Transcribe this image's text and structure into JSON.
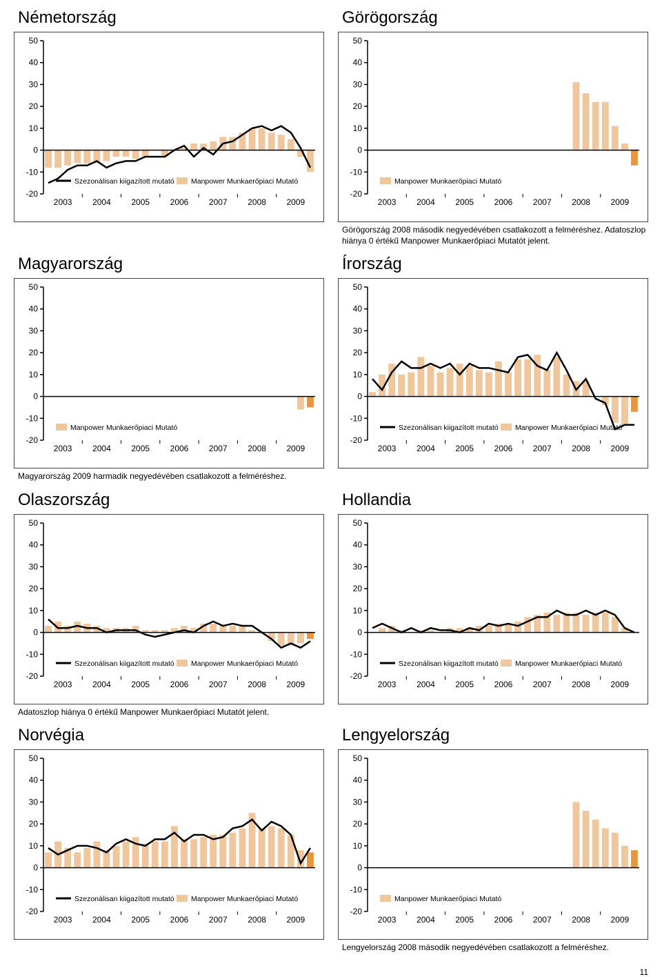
{
  "colors": {
    "bar": "#f0c69d",
    "hi": "#e9963e",
    "ln": "#000",
    "ax": "#000",
    "bg": "#fff"
  },
  "ylim": [
    -20,
    50
  ],
  "yticks": [
    -20,
    -10,
    0,
    10,
    20,
    30,
    40,
    50
  ],
  "years": [
    2003,
    2004,
    2005,
    2006,
    2007,
    2008,
    2009
  ],
  "bars_per_year": 4,
  "legend": {
    "sz": "Szezonálisan kiigazított mutató",
    "mp": "Manpower Munkaerőpiaci Mutató"
  },
  "pagenum": "11",
  "charts": [
    {
      "title": "Németország",
      "note": "",
      "bars": [
        -8,
        -8,
        -7,
        -6,
        -6,
        -6,
        -5,
        -3,
        -3,
        -4,
        -3,
        0,
        -3,
        0,
        1,
        3,
        3,
        4,
        6,
        6,
        8,
        10,
        10,
        8,
        7,
        5,
        -3,
        -10
      ],
      "line": [
        -15,
        -13,
        -9,
        -7,
        -7,
        -5,
        -8,
        -6,
        -5,
        -5,
        -3,
        -3,
        -3,
        0,
        2,
        -3,
        1,
        -2,
        3,
        4,
        7,
        10,
        11,
        9,
        11,
        8,
        1,
        -8
      ],
      "legend": [
        "sz",
        "mp"
      ]
    },
    {
      "title": "Görögország",
      "note": "Görögország 2008 második negyedévében csatlakozott a felméréshez. Adatoszlop hiánya 0 értékű Manpower Munkaerőpiaci Mutatót jelent.",
      "bars": [
        0,
        0,
        0,
        0,
        0,
        0,
        0,
        0,
        0,
        0,
        0,
        0,
        0,
        0,
        0,
        0,
        0,
        0,
        0,
        0,
        0,
        31,
        26,
        22,
        22,
        11,
        3,
        -7
      ],
      "line": null,
      "hi": [
        27
      ],
      "legend": [
        "mp"
      ]
    },
    {
      "title": "Magyarország",
      "note": "Magyarország 2009 harmadik negyedévében csatlakozott a felméréshez.",
      "bars": [
        0,
        0,
        0,
        0,
        0,
        0,
        0,
        0,
        0,
        0,
        0,
        0,
        0,
        0,
        0,
        0,
        0,
        0,
        0,
        0,
        0,
        0,
        0,
        0,
        0,
        0,
        -6,
        -5
      ],
      "line": null,
      "hi": [
        27
      ],
      "legend": [
        "mp"
      ]
    },
    {
      "title": "Írország",
      "note": "",
      "bars": [
        2,
        10,
        15,
        10,
        11,
        18,
        14,
        11,
        13,
        15,
        14,
        12,
        11,
        16,
        11,
        17,
        17,
        19,
        12,
        18,
        10,
        7,
        7,
        0,
        -4,
        -12,
        -13,
        -7
      ],
      "line": [
        8,
        3,
        11,
        16,
        13,
        13,
        15,
        13,
        15,
        10,
        15,
        13,
        13,
        12,
        11,
        18,
        19,
        14,
        12,
        20,
        12,
        3,
        8,
        -1,
        -3,
        -15,
        -13,
        -13
      ],
      "hi": [
        27
      ],
      "legend": [
        "sz",
        "mp"
      ]
    },
    {
      "title": "Olaszország",
      "note": "Adatoszlop hiánya 0 értékű Manpower Munkaerőpiaci Mutatót jelent.",
      "bars": [
        3,
        5,
        3,
        5,
        4,
        3,
        2,
        2,
        2,
        3,
        1,
        1,
        1,
        2,
        3,
        2,
        4,
        4,
        3,
        3,
        3,
        1,
        0,
        -4,
        -6,
        -6,
        -5,
        -3
      ],
      "line": [
        6,
        2,
        2,
        3,
        2,
        2,
        0,
        1,
        1,
        1,
        -1,
        -2,
        -1,
        0,
        1,
        0,
        3,
        5,
        3,
        4,
        3,
        3,
        0,
        -3,
        -7,
        -5,
        -7,
        -4
      ],
      "hi": [
        27
      ],
      "legend": [
        "sz",
        "mp"
      ]
    },
    {
      "title": "Hollandia",
      "note": "",
      "bars": [
        0,
        2,
        3,
        1,
        0,
        1,
        1,
        0,
        2,
        2,
        2,
        3,
        3,
        4,
        4,
        5,
        7,
        8,
        9,
        8,
        9,
        9,
        8,
        9,
        9,
        7,
        2,
        0
      ],
      "line": [
        2,
        4,
        2,
        0,
        2,
        0,
        2,
        1,
        1,
        0,
        2,
        1,
        4,
        3,
        4,
        3,
        5,
        7,
        7,
        10,
        8,
        8,
        10,
        8,
        10,
        8,
        2,
        0
      ],
      "legend": [
        "sz",
        "mp"
      ]
    },
    {
      "title": "Norvégia",
      "note": "",
      "bars": [
        7,
        12,
        9,
        7,
        9,
        12,
        8,
        10,
        12,
        14,
        11,
        12,
        12,
        19,
        13,
        13,
        14,
        15,
        15,
        16,
        18,
        25,
        18,
        19,
        18,
        15,
        8,
        7
      ],
      "line": [
        9,
        6,
        8,
        10,
        10,
        9,
        7,
        11,
        13,
        11,
        10,
        13,
        13,
        16,
        12,
        15,
        15,
        13,
        14,
        18,
        19,
        22,
        17,
        21,
        19,
        15,
        2,
        9
      ],
      "hi": [
        27
      ],
      "legend": [
        "sz",
        "mp"
      ]
    },
    {
      "title": "Lengyelország",
      "note": "Lengyelország 2008 második negyedévében csatlakozott a felméréshez.",
      "bars": [
        0,
        0,
        0,
        0,
        0,
        0,
        0,
        0,
        0,
        0,
        0,
        0,
        0,
        0,
        0,
        0,
        0,
        0,
        0,
        0,
        0,
        30,
        26,
        22,
        18,
        16,
        10,
        8
      ],
      "line": null,
      "hi": [
        27
      ],
      "legend": [
        "mp"
      ]
    }
  ]
}
